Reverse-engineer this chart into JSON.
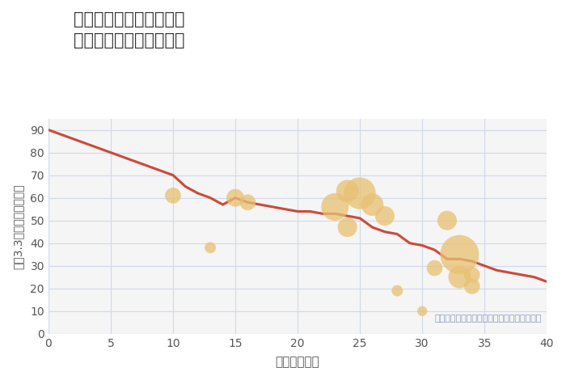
{
  "title": "兵庫県西宮市宝生ヶ丘の\n築年数別中古戸建て価格",
  "xlabel": "築年数（年）",
  "ylabel": "坪（3.3㎡）単価（万円）",
  "annotation": "円の大きさは、取引のあった物件面積を示す",
  "xlim": [
    0,
    40
  ],
  "ylim": [
    0,
    95
  ],
  "xticks": [
    0,
    5,
    10,
    15,
    20,
    25,
    30,
    35,
    40
  ],
  "yticks": [
    0,
    10,
    20,
    30,
    40,
    50,
    60,
    70,
    80,
    90
  ],
  "line_color": "#cc4a3a",
  "line_x": [
    0,
    1,
    2,
    3,
    4,
    5,
    6,
    7,
    8,
    9,
    10,
    11,
    12,
    13,
    14,
    15,
    16,
    17,
    18,
    19,
    20,
    21,
    22,
    23,
    24,
    25,
    26,
    27,
    28,
    29,
    30,
    31,
    32,
    33,
    34,
    35,
    36,
    37,
    38,
    39,
    40
  ],
  "line_y": [
    90,
    88,
    86,
    84,
    82,
    80,
    78,
    76,
    74,
    72,
    70,
    65,
    62,
    60,
    57,
    60,
    58,
    57,
    56,
    55,
    54,
    54,
    53,
    53,
    52,
    51,
    47,
    45,
    44,
    40,
    39,
    37,
    33,
    33,
    32,
    30,
    28,
    27,
    26,
    25,
    23
  ],
  "bubble_x": [
    10,
    13,
    15,
    16,
    23,
    24,
    24,
    25,
    26,
    27,
    28,
    30,
    31,
    32,
    33,
    33,
    34,
    34
  ],
  "bubble_y": [
    61,
    38,
    60,
    58,
    56,
    63,
    47,
    62,
    57,
    52,
    19,
    10,
    29,
    50,
    35,
    25,
    21,
    26
  ],
  "bubble_size": [
    200,
    100,
    250,
    200,
    600,
    400,
    300,
    800,
    400,
    300,
    100,
    80,
    200,
    300,
    1200,
    400,
    200,
    200
  ],
  "bubble_color": "#e8c070",
  "bubble_alpha": 0.75,
  "bg_color": "#f5f5f5",
  "grid_color": "#d0d8e8",
  "title_color": "#333333",
  "axis_label_color": "#555555",
  "annotation_color": "#8899bb"
}
